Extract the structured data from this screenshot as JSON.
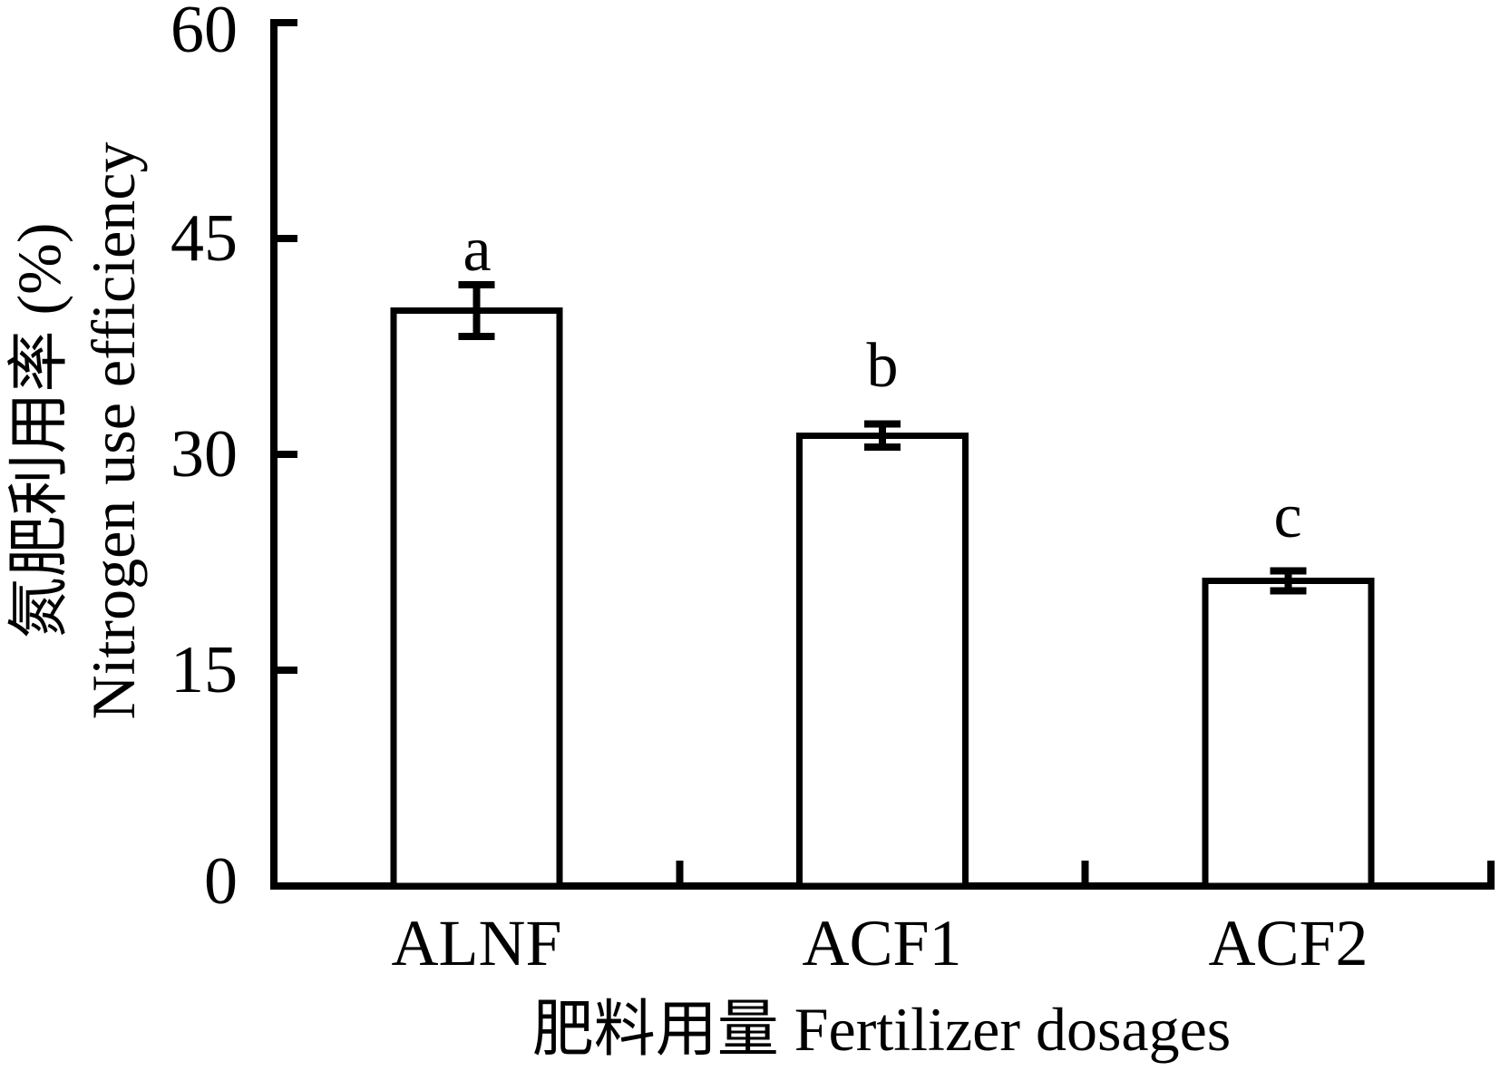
{
  "figure": {
    "background": "#ffffff",
    "ink_color": "#000000"
  },
  "chart_data": {
    "type": "bar",
    "categories": [
      "ALNF",
      "ACF1",
      "ACF2"
    ],
    "values": [
      40.0,
      31.3,
      21.2
    ],
    "errors": [
      1.8,
      0.8,
      0.7
    ],
    "sig_letters": [
      "a",
      "b",
      "c"
    ],
    "xlabel": "肥料用量 Fertilizer dosages",
    "ylabel_zh": "氮肥利用率 (%)",
    "ylabel_en": "Nitrogen use efficiency",
    "ylim": [
      0,
      60
    ],
    "yticks": [
      0,
      15,
      30,
      45,
      60
    ],
    "grid": false,
    "legend": "none",
    "error_bars": true,
    "bar_fill": "#ffffff",
    "bar_stroke": "#000000"
  }
}
